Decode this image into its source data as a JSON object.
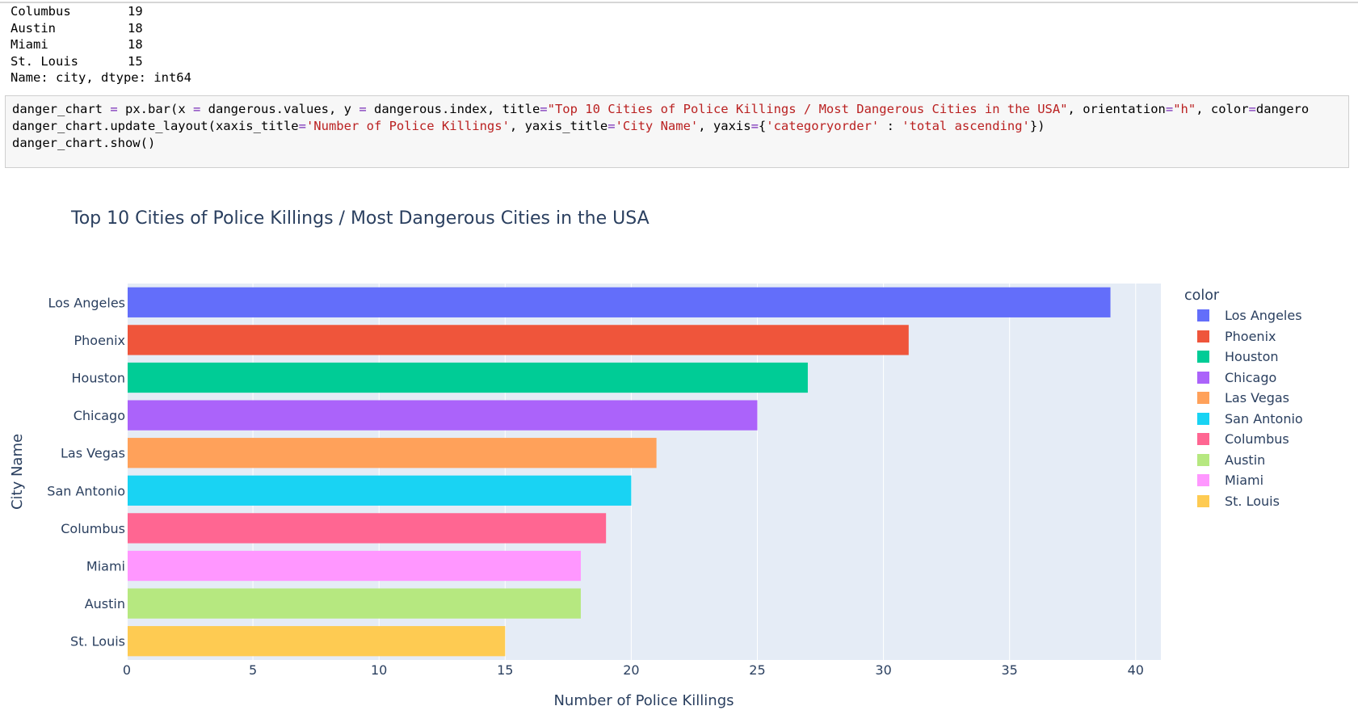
{
  "output_series": {
    "rows": [
      {
        "city": "Columbus",
        "value": "19"
      },
      {
        "city": "Austin",
        "value": "18"
      },
      {
        "city": "Miami",
        "value": "18"
      },
      {
        "city": "St. Louis",
        "value": "15"
      }
    ],
    "footer": "Name: city, dtype: int64"
  },
  "code_cell": {
    "line1": {
      "a": "danger_chart ",
      "op1": "=",
      "b": " px.bar(x ",
      "op2": "=",
      "c": " dangerous.values, y ",
      "op3": "=",
      "d": " dangerous.index, title",
      "op4": "=",
      "title_str": "\"Top 10 Cities of Police Killings / Most Dangerous Cities in the USA\"",
      "e": ", orientation",
      "op5": "=",
      "orient_str": "\"h\"",
      "f": ", color",
      "op6": "=",
      "g": "dangero"
    },
    "line2": {
      "a": "danger_chart.update_layout(xaxis_title",
      "op1": "=",
      "s1": "'Number of Police Killings'",
      "b": ", yaxis_title",
      "op2": "=",
      "s2": "'City Name'",
      "c": ", yaxis",
      "op3": "=",
      "d": "{",
      "s3": "'categoryorder'",
      "e": " : ",
      "s4": "'total ascending'",
      "f": "})"
    },
    "line3": "danger_chart.show()"
  },
  "chart_data": {
    "type": "bar",
    "orientation": "horizontal",
    "title": "Top 10 Cities of Police Killings / Most Dangerous Cities in the USA",
    "xlabel": "Number of Police Killings",
    "ylabel": "City Name",
    "xlim": [
      0,
      41
    ],
    "xticks": [
      0,
      5,
      10,
      15,
      20,
      25,
      30,
      35,
      40
    ],
    "categories": [
      "Los Angeles",
      "Phoenix",
      "Houston",
      "Chicago",
      "Las Vegas",
      "San Antonio",
      "Columbus",
      "Miami",
      "Austin",
      "St. Louis"
    ],
    "values": [
      39,
      31,
      27,
      25,
      21,
      20,
      19,
      18,
      18,
      15
    ],
    "colors": [
      "#636efa",
      "#ef553b",
      "#00cc96",
      "#ab63fa",
      "#ffa15a",
      "#19d3f3",
      "#ff6692",
      "#ff97ff",
      "#b6e880",
      "#fecb52"
    ],
    "legend_title": "color",
    "legend_order": [
      "Los Angeles",
      "Phoenix",
      "Houston",
      "Chicago",
      "Las Vegas",
      "San Antonio",
      "Columbus",
      "Austin",
      "Miami",
      "St. Louis"
    ],
    "legend_position": "right",
    "grid": true,
    "plot_bgcolor": "#e5ecf6"
  }
}
